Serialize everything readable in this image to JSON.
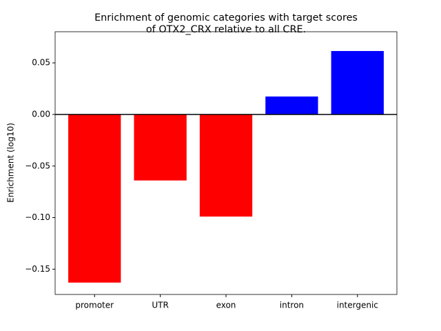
{
  "chart_data": {
    "type": "bar",
    "title": [
      "Enrichment of genomic categories with target scores",
      "of OTX2_CRX relative to all CRE."
    ],
    "y_label": "Enrichment (log10)",
    "categories": [
      "promoter",
      "UTR",
      "exon",
      "intron",
      "intergenic"
    ],
    "values": [
      -0.163,
      -0.064,
      -0.099,
      0.0174,
      0.0615
    ],
    "colors": [
      "#ff0000",
      "#ff0000",
      "#ff0000",
      "#0000ff",
      "#0000ff"
    ],
    "ylim": [
      -0.1745,
      0.0802
    ],
    "yticks": [
      {
        "value": -0.15,
        "label": "−0.15"
      },
      {
        "value": -0.1,
        "label": "−0.10"
      },
      {
        "value": -0.05,
        "label": "−0.05"
      },
      {
        "value": 0,
        "label": "0.00"
      },
      0.05
    ]
  }
}
